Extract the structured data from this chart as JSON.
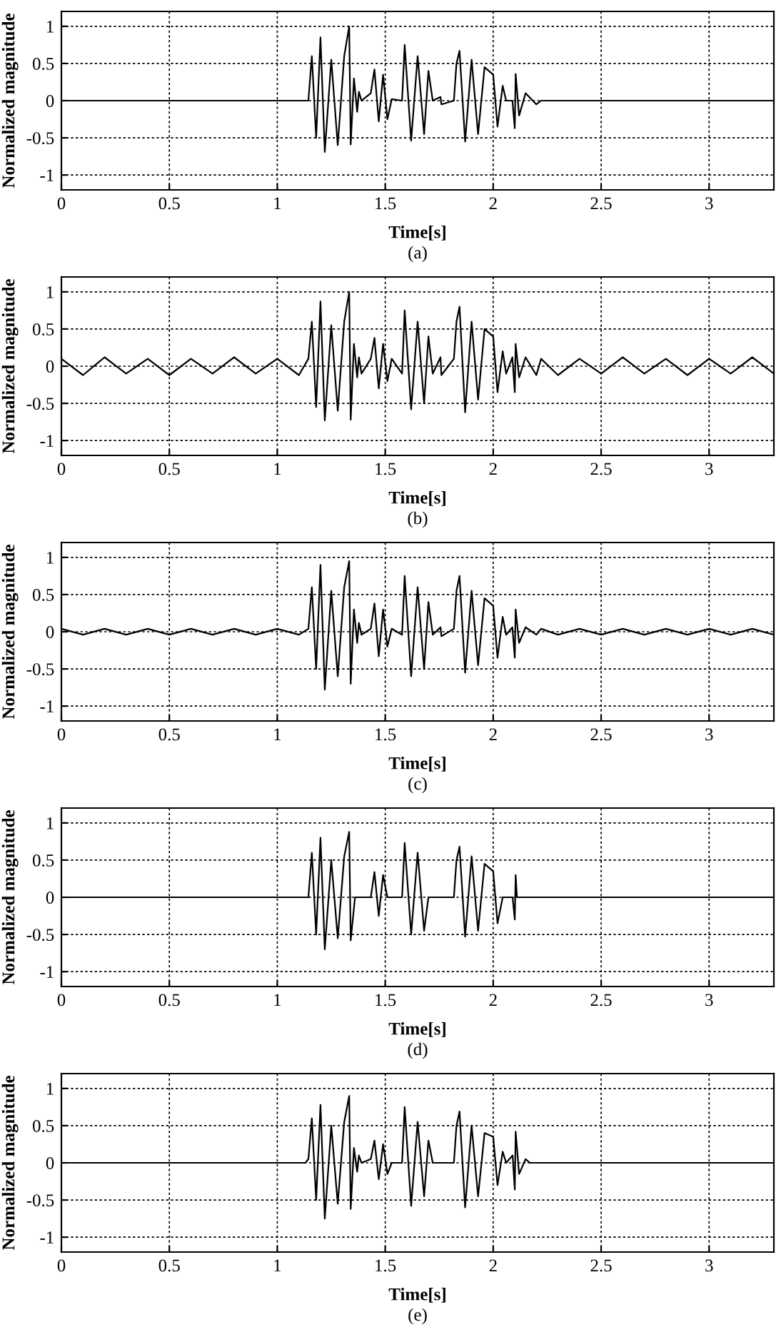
{
  "chart_data": [
    {
      "type": "line",
      "xlabel": "Time[s]",
      "ylabel": "Normalized magnitude",
      "annotations": [
        "(a)"
      ],
      "xlim": [
        0,
        3.3
      ],
      "ylim": [
        -1.2,
        1.2
      ],
      "xticks": [
        0,
        0.5,
        1,
        1.5,
        2,
        2.5,
        3
      ],
      "yticks": [
        -1,
        -0.5,
        0,
        0.5,
        1
      ],
      "grid": true,
      "series": [
        {
          "color": "#000000",
          "x": [
            0,
            1.1,
            1.144,
            1.16,
            1.18,
            1.2,
            1.22,
            1.25,
            1.28,
            1.31,
            1.333,
            1.34,
            1.355,
            1.37,
            1.378,
            1.39,
            1.433,
            1.45,
            1.47,
            1.49,
            1.51,
            1.53,
            1.578,
            1.59,
            1.62,
            1.65,
            1.68,
            1.7,
            1.72,
            1.756,
            1.76,
            1.818,
            1.83,
            1.844,
            1.87,
            1.9,
            1.93,
            1.96,
            2.0,
            2.02,
            2.044,
            2.06,
            2.089,
            2.1,
            2.104,
            2.12,
            2.15,
            2.2,
            2.222,
            3.3
          ],
          "values": [
            0,
            0,
            0,
            0.6,
            -0.5,
            0.85,
            -0.69,
            0.55,
            -0.6,
            0.6,
            1.0,
            -0.59,
            0.3,
            -0.15,
            0.12,
            0,
            0.1,
            0.42,
            -0.28,
            0.35,
            -0.25,
            0.02,
            0,
            0.75,
            -0.54,
            0.6,
            -0.45,
            0.4,
            0,
            0.05,
            -0.05,
            0,
            0.5,
            0.67,
            -0.55,
            0.55,
            -0.45,
            0.45,
            0.35,
            -0.35,
            0.2,
            0,
            0,
            -0.37,
            0.36,
            -0.2,
            0.1,
            -0.05,
            0,
            0
          ]
        }
      ]
    },
    {
      "type": "line",
      "xlabel": "Time[s]",
      "ylabel": "Normalized magnitude",
      "annotations": [
        "(b)"
      ],
      "xlim": [
        0,
        3.3
      ],
      "ylim": [
        -1.2,
        1.2
      ],
      "xticks": [
        0,
        0.5,
        1,
        1.5,
        2,
        2.5,
        3
      ],
      "yticks": [
        -1,
        -0.5,
        0,
        0.5,
        1
      ],
      "grid": true,
      "series": [
        {
          "color": "#000000",
          "x": [
            0,
            0.1,
            0.2,
            0.3,
            0.4,
            0.5,
            0.6,
            0.7,
            0.8,
            0.9,
            1.0,
            1.1,
            1.144,
            1.16,
            1.18,
            1.2,
            1.22,
            1.25,
            1.28,
            1.31,
            1.333,
            1.34,
            1.355,
            1.37,
            1.378,
            1.39,
            1.433,
            1.45,
            1.47,
            1.49,
            1.51,
            1.53,
            1.578,
            1.59,
            1.62,
            1.65,
            1.68,
            1.7,
            1.72,
            1.756,
            1.76,
            1.818,
            1.83,
            1.844,
            1.87,
            1.9,
            1.93,
            1.96,
            2.0,
            2.02,
            2.044,
            2.06,
            2.089,
            2.1,
            2.104,
            2.12,
            2.15,
            2.2,
            2.222,
            2.3,
            2.4,
            2.5,
            2.6,
            2.7,
            2.8,
            2.9,
            3.0,
            3.1,
            3.2,
            3.3
          ],
          "values": [
            0.1,
            -0.12,
            0.12,
            -0.1,
            0.1,
            -0.12,
            0.1,
            -0.1,
            0.12,
            -0.1,
            0.1,
            -0.12,
            0.1,
            0.6,
            -0.55,
            0.87,
            -0.73,
            0.55,
            -0.6,
            0.6,
            1.0,
            -0.72,
            0.3,
            -0.15,
            0.12,
            -0.1,
            0.1,
            0.38,
            -0.3,
            0.3,
            -0.2,
            0.1,
            -0.1,
            0.75,
            -0.58,
            0.6,
            -0.5,
            0.4,
            -0.1,
            0.12,
            -0.12,
            0.1,
            0.6,
            0.8,
            -0.62,
            0.6,
            -0.45,
            0.5,
            0.4,
            -0.35,
            0.2,
            -0.1,
            0.12,
            -0.35,
            0.3,
            -0.15,
            0.12,
            -0.12,
            0.1,
            -0.12,
            0.1,
            -0.1,
            0.12,
            -0.1,
            0.1,
            -0.12,
            0.1,
            -0.1,
            0.12,
            -0.1
          ]
        }
      ]
    },
    {
      "type": "line",
      "xlabel": "Time[s]",
      "ylabel": "Normalized magnitude",
      "annotations": [
        "(c)"
      ],
      "xlim": [
        0,
        3.3
      ],
      "ylim": [
        -1.2,
        1.2
      ],
      "xticks": [
        0,
        0.5,
        1,
        1.5,
        2,
        2.5,
        3
      ],
      "yticks": [
        -1,
        -0.5,
        0,
        0.5,
        1
      ],
      "grid": true,
      "series": [
        {
          "color": "#000000",
          "x": [
            0,
            0.1,
            0.2,
            0.3,
            0.4,
            0.5,
            0.6,
            0.7,
            0.8,
            0.9,
            1.0,
            1.1,
            1.144,
            1.16,
            1.18,
            1.2,
            1.22,
            1.25,
            1.28,
            1.31,
            1.333,
            1.34,
            1.355,
            1.37,
            1.378,
            1.39,
            1.433,
            1.45,
            1.47,
            1.49,
            1.51,
            1.53,
            1.578,
            1.59,
            1.62,
            1.65,
            1.68,
            1.7,
            1.72,
            1.756,
            1.76,
            1.818,
            1.83,
            1.844,
            1.87,
            1.9,
            1.93,
            1.96,
            2.0,
            2.02,
            2.044,
            2.06,
            2.089,
            2.1,
            2.104,
            2.12,
            2.15,
            2.2,
            2.222,
            2.3,
            2.4,
            2.5,
            2.6,
            2.7,
            2.8,
            2.9,
            3.0,
            3.1,
            3.2,
            3.3
          ],
          "values": [
            0.04,
            -0.04,
            0.04,
            -0.04,
            0.04,
            -0.04,
            0.04,
            -0.04,
            0.04,
            -0.04,
            0.04,
            -0.04,
            0.04,
            0.6,
            -0.5,
            0.9,
            -0.78,
            0.55,
            -0.6,
            0.6,
            0.95,
            -0.7,
            0.3,
            -0.15,
            0.12,
            -0.04,
            0.04,
            0.38,
            -0.33,
            0.3,
            -0.2,
            0.04,
            -0.04,
            0.75,
            -0.6,
            0.6,
            -0.5,
            0.4,
            -0.04,
            0.06,
            -0.06,
            0.04,
            0.55,
            0.75,
            -0.55,
            0.55,
            -0.45,
            0.45,
            0.35,
            -0.35,
            0.2,
            -0.04,
            0.06,
            -0.35,
            0.3,
            -0.15,
            0.06,
            -0.04,
            0.04,
            -0.04,
            0.04,
            -0.04,
            0.04,
            -0.04,
            0.04,
            -0.04,
            0.04,
            -0.04,
            0.04,
            -0.04
          ]
        }
      ]
    },
    {
      "type": "line",
      "xlabel": "Time[s]",
      "ylabel": "Normalized magnitude",
      "annotations": [
        "(d)"
      ],
      "xlim": [
        0,
        3.3
      ],
      "ylim": [
        -1.2,
        1.2
      ],
      "xticks": [
        0,
        0.5,
        1,
        1.5,
        2,
        2.5,
        3
      ],
      "yticks": [
        -1,
        -0.5,
        0,
        0.5,
        1
      ],
      "grid": true,
      "series": [
        {
          "color": "#000000",
          "x": [
            0,
            1.144,
            1.16,
            1.18,
            1.2,
            1.22,
            1.25,
            1.28,
            1.31,
            1.333,
            1.34,
            1.36,
            1.433,
            1.45,
            1.47,
            1.49,
            1.51,
            1.578,
            1.59,
            1.62,
            1.65,
            1.68,
            1.7,
            1.818,
            1.83,
            1.844,
            1.87,
            1.9,
            1.93,
            1.96,
            2.0,
            2.02,
            2.044,
            2.09,
            2.1,
            2.104,
            2.11,
            3.3
          ],
          "values": [
            0,
            0,
            0.6,
            -0.5,
            0.8,
            -0.7,
            0.5,
            -0.55,
            0.55,
            0.88,
            -0.58,
            0,
            0,
            0.34,
            -0.25,
            0.3,
            0,
            0,
            0.73,
            -0.5,
            0.6,
            -0.45,
            0,
            0,
            0.5,
            0.68,
            -0.53,
            0.55,
            -0.45,
            0.45,
            0.35,
            -0.35,
            0,
            0,
            -0.3,
            0.3,
            0,
            0
          ]
        }
      ]
    },
    {
      "type": "line",
      "xlabel": "Time[s]",
      "ylabel": "Normalized magnitude",
      "annotations": [
        "(e)"
      ],
      "xlim": [
        0,
        3.3
      ],
      "ylim": [
        -1.2,
        1.2
      ],
      "xticks": [
        0,
        0.5,
        1,
        1.5,
        2,
        2.5,
        3
      ],
      "yticks": [
        -1,
        -0.5,
        0,
        0.5,
        1
      ],
      "grid": true,
      "series": [
        {
          "color": "#000000",
          "x": [
            0,
            1.13,
            1.144,
            1.16,
            1.18,
            1.2,
            1.22,
            1.25,
            1.28,
            1.31,
            1.333,
            1.34,
            1.355,
            1.37,
            1.378,
            1.39,
            1.433,
            1.45,
            1.47,
            1.49,
            1.51,
            1.53,
            1.578,
            1.59,
            1.62,
            1.65,
            1.68,
            1.7,
            1.72,
            1.818,
            1.83,
            1.844,
            1.87,
            1.9,
            1.93,
            1.96,
            2.0,
            2.02,
            2.044,
            2.06,
            2.09,
            2.1,
            2.104,
            2.12,
            2.15,
            2.17,
            3.3
          ],
          "values": [
            0,
            0,
            0.05,
            0.6,
            -0.5,
            0.78,
            -0.75,
            0.5,
            -0.55,
            0.55,
            0.9,
            -0.62,
            0.2,
            -0.12,
            0.1,
            0,
            0.05,
            0.3,
            -0.22,
            0.25,
            -0.15,
            0,
            0,
            0.75,
            -0.58,
            0.55,
            -0.45,
            0.3,
            0,
            0,
            0.5,
            0.69,
            -0.6,
            0.5,
            -0.45,
            0.4,
            0.35,
            -0.3,
            0.15,
            0,
            0.1,
            -0.36,
            0.42,
            -0.15,
            0.05,
            0,
            0
          ]
        }
      ]
    }
  ]
}
